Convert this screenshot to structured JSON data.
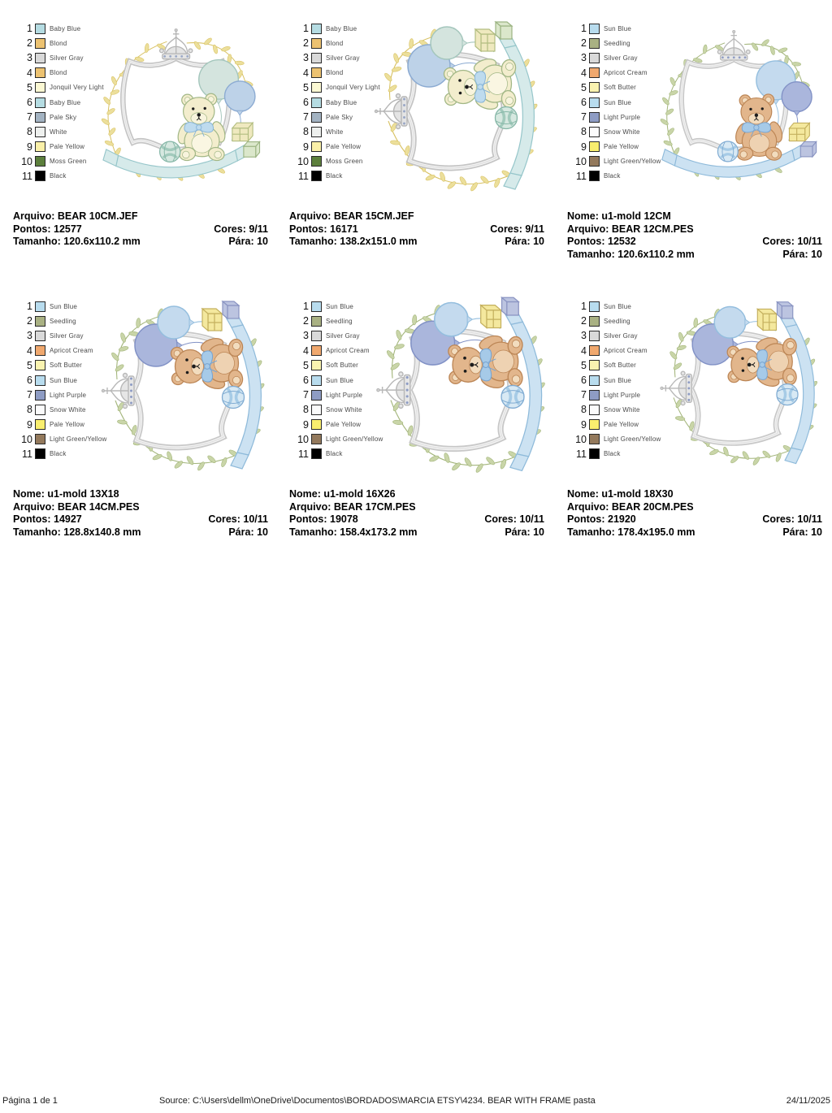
{
  "labels": {
    "nome": "Nome:",
    "arquivo": "Arquivo:",
    "pontos": "Pontos:",
    "cores": "Cores:",
    "tamanho": "Tamanho:",
    "para": "Pára:"
  },
  "palettes": {
    "jef": {
      "threads": [
        {
          "num": 1,
          "name": "Baby Blue",
          "hex": "#b5dce2"
        },
        {
          "num": 2,
          "name": "Blond",
          "hex": "#ecc271"
        },
        {
          "num": 3,
          "name": "Silver Gray",
          "hex": "#d9d9d9"
        },
        {
          "num": 4,
          "name": "Blond",
          "hex": "#ecc271"
        },
        {
          "num": 5,
          "name": "Jonquil Very Light",
          "hex": "#fbf8d3"
        },
        {
          "num": 6,
          "name": "Baby Blue",
          "hex": "#b5dce2"
        },
        {
          "num": 7,
          "name": "Pale Sky",
          "hex": "#a3b3c2"
        },
        {
          "num": 8,
          "name": "White",
          "hex": "#eef0ee"
        },
        {
          "num": 9,
          "name": "Pale Yellow",
          "hex": "#faf0a8"
        },
        {
          "num": 10,
          "name": "Moss Green",
          "hex": "#5c7f3c"
        },
        {
          "num": 11,
          "name": "Black",
          "hex": "#000000"
        }
      ]
    },
    "pes": {
      "threads": [
        {
          "num": 1,
          "name": "Sun Blue",
          "hex": "#b8dcee"
        },
        {
          "num": 2,
          "name": "Seedling",
          "hex": "#a9b183"
        },
        {
          "num": 3,
          "name": "Silver Gray",
          "hex": "#d9d9d9"
        },
        {
          "num": 4,
          "name": "Apricot Cream",
          "hex": "#f0a86e"
        },
        {
          "num": 5,
          "name": "Soft Butter",
          "hex": "#faf3b0"
        },
        {
          "num": 6,
          "name": "Sun Blue",
          "hex": "#b8dcee"
        },
        {
          "num": 7,
          "name": "Light Purple",
          "hex": "#8e9cc4"
        },
        {
          "num": 8,
          "name": "Snow White",
          "hex": "#fbfbfb"
        },
        {
          "num": 9,
          "name": "Pale Yellow",
          "hex": "#f9ee6e"
        },
        {
          "num": 10,
          "name": "Light Green/Yellow",
          "hex": "#93795c"
        },
        {
          "num": 11,
          "name": "Black",
          "hex": "#000000"
        }
      ]
    }
  },
  "designs": [
    {
      "arquivo": "BEAR 10CM.JEF",
      "pontos": "12577",
      "cores": "9/11",
      "tamanho": "120.6x110.2 mm",
      "para": "10",
      "palette": "jef",
      "rotated": false
    },
    {
      "arquivo": "BEAR 15CM.JEF",
      "pontos": "16171",
      "cores": "9/11",
      "tamanho": "138.2x151.0 mm",
      "para": "10",
      "palette": "jef",
      "rotated": true
    },
    {
      "nome": "u1-mold 12CM",
      "arquivo": "BEAR 12CM.PES",
      "pontos": "12532",
      "cores": "10/11",
      "tamanho": "120.6x110.2 mm",
      "para": "10",
      "palette": "pes",
      "rotated": false
    },
    {
      "nome": "u1-mold 13X18",
      "arquivo": "BEAR 14CM.PES",
      "pontos": "14927",
      "cores": "10/11",
      "tamanho": "128.8x140.8 mm",
      "para": "10",
      "palette": "pes",
      "rotated": true
    },
    {
      "nome": "u1-mold 16X26",
      "arquivo": "BEAR 17CM.PES",
      "pontos": "19078",
      "cores": "10/11",
      "tamanho": "158.4x173.2 mm",
      "para": "10",
      "palette": "pes",
      "rotated": true
    },
    {
      "nome": "u1-mold 18X30",
      "arquivo": "BEAR 20CM.PES",
      "pontos": "21920",
      "cores": "10/11",
      "tamanho": "178.4x195.0 mm",
      "para": "10",
      "palette": "pes",
      "rotated": true
    }
  ],
  "artwork_colors": {
    "jef": {
      "leaf": "#ecdf9b",
      "leafLine": "#d8c264",
      "frameRim": "#c4c4c4",
      "frameInner": "#ffffff",
      "frameLine": "#dcdcdc",
      "crown": "#e4e4e4",
      "crownLine": "#b5b5b5",
      "crownDots": "#9aa8c6",
      "balloon1": "#d4e4de",
      "balloon1Line": "#a4c6bc",
      "balloon2": "#bdd2e8",
      "balloon2Line": "#8cabd2",
      "bearBody": "#f3edcd",
      "bearLine": "#a2b786",
      "bearBelly": "#faf6e2",
      "muzzle": "#f8f4dd",
      "bow": "#bedbee",
      "bowLine": "#86b4d8",
      "ribbon": "#d6eaea",
      "ribbonLine": "#96c6ca",
      "ball": "#d6e8e0",
      "ballStripe": "#a2cabc",
      "ballLine": "#84b6a6",
      "gift1": "#efe9bf",
      "gift1Line": "#b2bd80",
      "gift2": "#dbe7cb",
      "gift2Line": "#9cb483",
      "face": "#1c1c1c"
    },
    "pes": {
      "leaf": "#c9d5a8",
      "leafLine": "#a4b67c",
      "frameRim": "#c8c8c8",
      "frameInner": "#ffffff",
      "frameLine": "#dcdcdc",
      "crown": "#e6e6e6",
      "crownLine": "#b8b8b8",
      "crownDots": "#8e9cc4",
      "balloon1": "#c4daee",
      "balloon1Line": "#94bede",
      "balloon2": "#aab6dc",
      "balloon2Line": "#8292c6",
      "bearBody": "#e2b68c",
      "bearLine": "#bc8656",
      "bearBelly": "#eed2b2",
      "muzzle": "#f2dcbe",
      "bow": "#a6cae8",
      "bowLine": "#78a4d0",
      "ribbon": "#cce2f2",
      "ribbonLine": "#8ebada",
      "ball": "#d8e9f4",
      "ballStripe": "#a6cbe6",
      "ballLine": "#7fabd2",
      "gift1": "#f4e89e",
      "gift1Line": "#c4b05e",
      "gift2": "#bcc4e0",
      "gift2Line": "#8a94c2",
      "face": "#1c1c1c"
    }
  },
  "footer": {
    "page_label": "Página 1 de 1",
    "source": "Source: C:\\Users\\dellm\\OneDrive\\Documentos\\BORDADOS\\MARCIA ETSY\\4234. BEAR WITH FRAME pasta",
    "date": "24/11/2025"
  }
}
